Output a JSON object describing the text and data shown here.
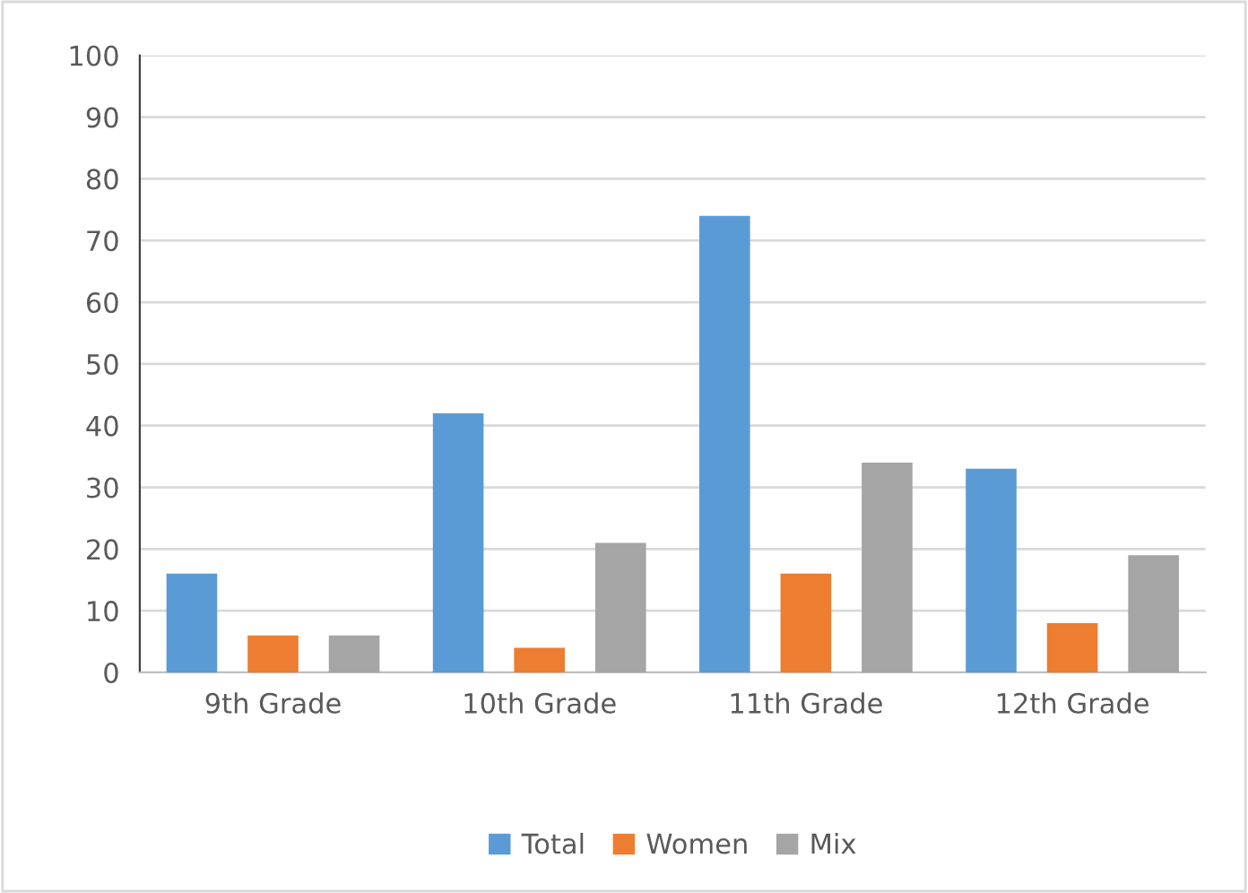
{
  "chart_data": {
    "type": "bar",
    "categories": [
      "9th Grade",
      "10th Grade",
      "11th Grade",
      "12th Grade"
    ],
    "series": [
      {
        "name": "Total",
        "color": "#5b9bd5",
        "values": [
          16,
          42,
          74,
          33
        ]
      },
      {
        "name": "Women",
        "color": "#ed7d31",
        "values": [
          6,
          4,
          16,
          8
        ]
      },
      {
        "name": "Mix",
        "color": "#a5a5a5",
        "values": [
          6,
          21,
          34,
          19
        ]
      }
    ],
    "ylim": [
      0,
      100
    ],
    "yticks": [
      0,
      10,
      20,
      30,
      40,
      50,
      60,
      70,
      80,
      90,
      100
    ],
    "grid": "y",
    "legend": "bottom"
  }
}
